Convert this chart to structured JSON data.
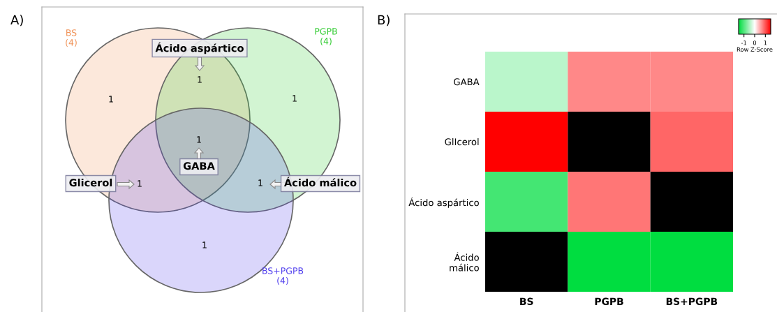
{
  "chart_data": [
    {
      "type": "other",
      "title": "A)",
      "categories": [
        "BS",
        "PGPB",
        "BS+PGPB"
      ],
      "values": [
        4,
        4,
        4
      ],
      "value_labels": [
        "(4)",
        "(4)",
        "(4)"
      ],
      "colors": [
        "#f0945a",
        "#33cc33",
        "#5544ee"
      ],
      "annotations": [
        "1",
        "1",
        "1",
        "1",
        "1",
        "1",
        "1",
        "Ácido aspártico",
        "GABA",
        "Glicerol",
        "Ácido málico"
      ]
    },
    {
      "type": "heatmap",
      "title": "B)",
      "categories": [
        "BS",
        "PGPB",
        "BS+PGPB"
      ],
      "y_categories": [
        "GABA",
        "GlIcerol",
        "Ácido aspártico",
        "Ácido\nmálico"
      ],
      "cells": [
        [
          -0.4,
          0.7,
          0.7
        ],
        [
          1.5,
          null,
          0.9
        ],
        [
          -1.1,
          0.8,
          null
        ],
        [
          null,
          -1.5,
          -1.5
        ]
      ],
      "clim": [
        -1.5,
        1.5
      ],
      "cticks": [
        -1,
        0,
        1
      ],
      "clabel": "Row Z-Score"
    }
  ]
}
